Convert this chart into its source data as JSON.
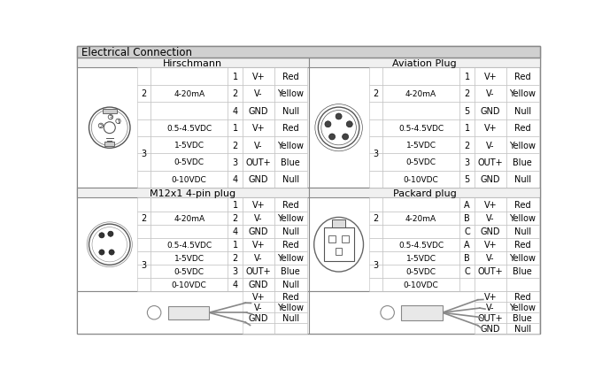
{
  "title": "Electrical Connection",
  "title_bg": "#808080",
  "bg_color": "#ffffff",
  "cell_bg": "#ffffff",
  "header_bg": "#f5f5f5",
  "border_color": "#888888",
  "light_border": "#bbbbbb",
  "font_size_title": 8.5,
  "font_size_header": 8.0,
  "font_size_cell": 7.0,
  "font_size_small": 6.0,
  "hirschmann_rows": [
    [
      "2",
      "4-20mA",
      "1",
      "V+",
      "Red"
    ],
    [
      "",
      "",
      "2",
      "V-",
      "Yellow"
    ],
    [
      "",
      "",
      "4",
      "GND",
      "Null"
    ],
    [
      "3",
      "0.5-4.5VDC",
      "1",
      "V+",
      "Red"
    ],
    [
      "",
      "1-5VDC",
      "2",
      "V-",
      "Yellow"
    ],
    [
      "",
      "0-5VDC",
      "3",
      "OUT+",
      "Blue"
    ],
    [
      "",
      "0-10VDC",
      "4",
      "GND",
      "Null"
    ]
  ],
  "aviation_rows": [
    [
      "2",
      "4-20mA",
      "1",
      "V+",
      "Red"
    ],
    [
      "",
      "",
      "2",
      "V-",
      "Yellow"
    ],
    [
      "",
      "",
      "5",
      "GND",
      "Null"
    ],
    [
      "3",
      "0.5-4.5VDC",
      "1",
      "V+",
      "Red"
    ],
    [
      "",
      "1-5VDC",
      "2",
      "V-",
      "Yellow"
    ],
    [
      "",
      "0-5VDC",
      "3",
      "OUT+",
      "Blue"
    ],
    [
      "",
      "0-10VDC",
      "5",
      "GND",
      "Null"
    ]
  ],
  "m12_rows": [
    [
      "2",
      "4-20mA",
      "1",
      "V+",
      "Red"
    ],
    [
      "",
      "",
      "2",
      "V-",
      "Yellow"
    ],
    [
      "",
      "",
      "4",
      "GND",
      "Null"
    ],
    [
      "3",
      "0.5-4.5VDC",
      "1",
      "V+",
      "Red"
    ],
    [
      "",
      "1-5VDC",
      "2",
      "V-",
      "Yellow"
    ],
    [
      "",
      "0-5VDC",
      "3",
      "OUT+",
      "Blue"
    ],
    [
      "",
      "0-10VDC",
      "4",
      "GND",
      "Null"
    ]
  ],
  "packard_rows": [
    [
      "2",
      "4-20mA",
      "A",
      "V+",
      "Red"
    ],
    [
      "",
      "",
      "B",
      "V-",
      "Yellow"
    ],
    [
      "",
      "",
      "C",
      "GND",
      "Null"
    ],
    [
      "3",
      "0.5-4.5VDC",
      "A",
      "V+",
      "Red"
    ],
    [
      "",
      "1-5VDC",
      "B",
      "V-",
      "Yellow"
    ],
    [
      "",
      "0-5VDC",
      "C",
      "OUT+",
      "Blue"
    ],
    [
      "",
      "0-10VDC",
      "",
      "",
      ""
    ]
  ],
  "cable_left_rows": [
    [
      "V+",
      "Red"
    ],
    [
      "V-",
      "Yellow"
    ],
    [
      "GND",
      "Null"
    ]
  ],
  "cable_right_rows": [
    [
      "V+",
      "Red"
    ],
    [
      "V-",
      "Yellow"
    ],
    [
      "OUT+",
      "Blue"
    ],
    [
      "GND",
      "Null"
    ]
  ]
}
